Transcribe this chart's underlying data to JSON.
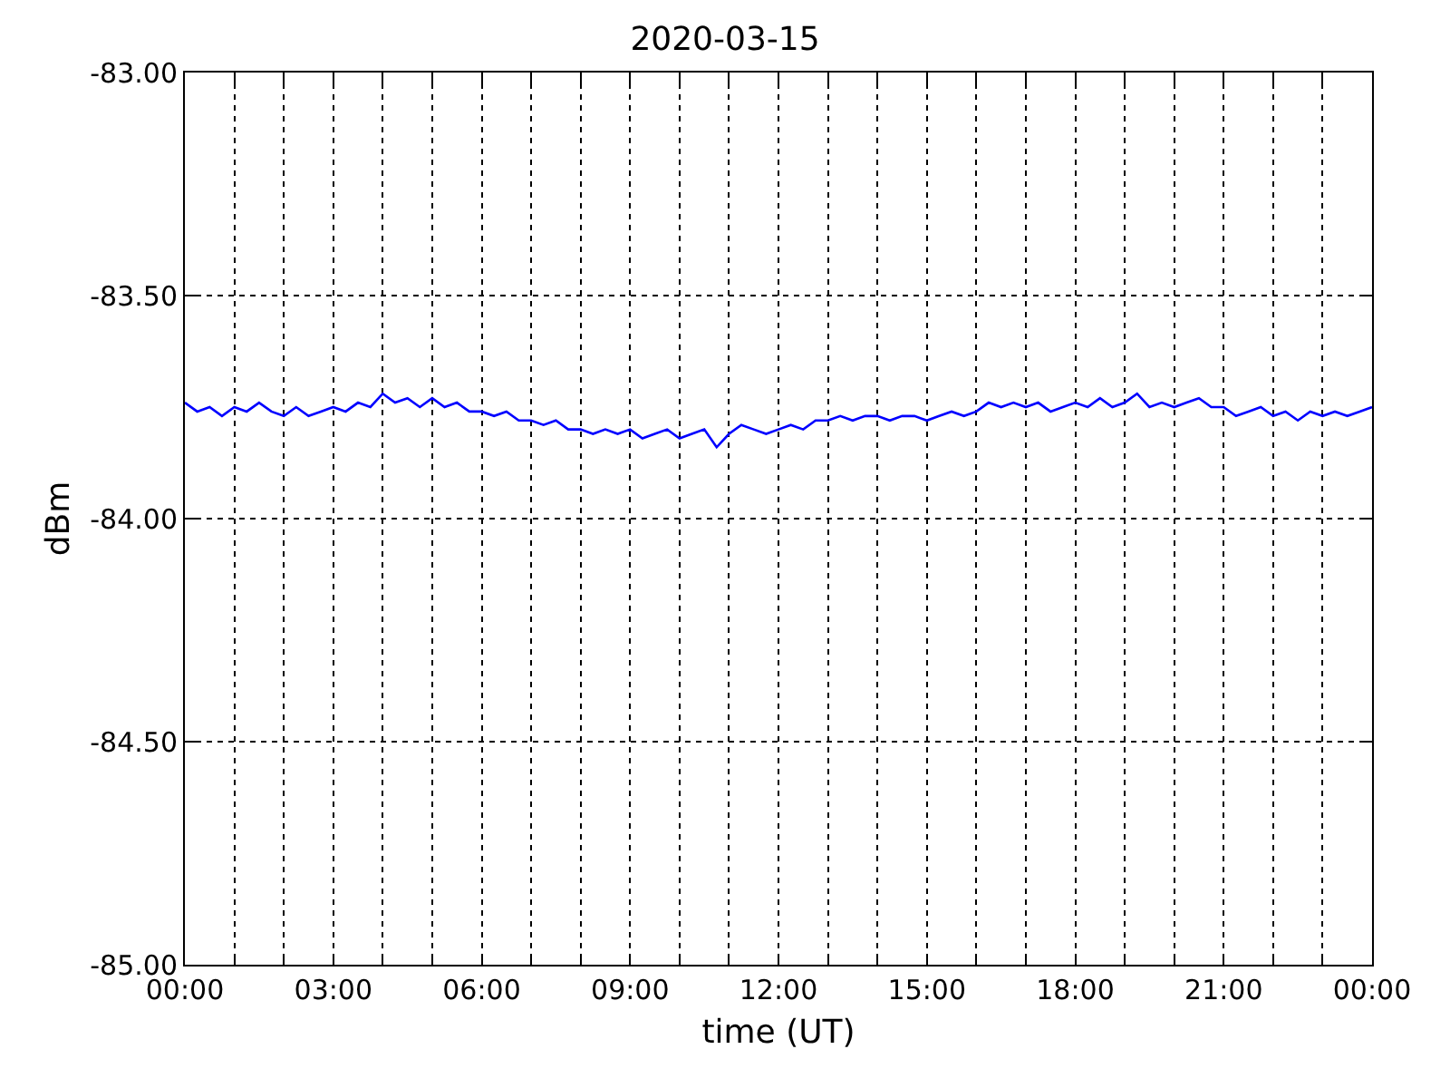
{
  "chart_data": {
    "type": "line",
    "title": "2020-03-15",
    "xlabel": "time (UT)",
    "ylabel": "dBm",
    "x": [
      0,
      0.25,
      0.5,
      0.75,
      1,
      1.25,
      1.5,
      1.75,
      2,
      2.25,
      2.5,
      2.75,
      3,
      3.25,
      3.5,
      3.75,
      4,
      4.25,
      4.5,
      4.75,
      5,
      5.25,
      5.5,
      5.75,
      6,
      6.25,
      6.5,
      6.75,
      7,
      7.25,
      7.5,
      7.75,
      8,
      8.25,
      8.5,
      8.75,
      9,
      9.25,
      9.5,
      9.75,
      10,
      10.25,
      10.5,
      10.75,
      11,
      11.25,
      11.5,
      11.75,
      12,
      12.25,
      12.5,
      12.75,
      13,
      13.25,
      13.5,
      13.75,
      14,
      14.25,
      14.5,
      14.75,
      15,
      15.25,
      15.5,
      15.75,
      16,
      16.25,
      16.5,
      16.75,
      17,
      17.25,
      17.5,
      17.75,
      18,
      18.25,
      18.5,
      18.75,
      19,
      19.25,
      19.5,
      19.75,
      20,
      20.25,
      20.5,
      20.75,
      21,
      21.25,
      21.5,
      21.75,
      22,
      22.25,
      22.5,
      22.75,
      23,
      23.25,
      23.5,
      23.75,
      24
    ],
    "series": [
      {
        "color": "#0000ff",
        "values": [
          -83.74,
          -83.76,
          -83.75,
          -83.77,
          -83.75,
          -83.76,
          -83.74,
          -83.76,
          -83.77,
          -83.75,
          -83.77,
          -83.76,
          -83.75,
          -83.76,
          -83.74,
          -83.75,
          -83.72,
          -83.74,
          -83.73,
          -83.75,
          -83.73,
          -83.75,
          -83.74,
          -83.76,
          -83.76,
          -83.77,
          -83.76,
          -83.78,
          -83.78,
          -83.79,
          -83.78,
          -83.8,
          -83.8,
          -83.81,
          -83.8,
          -83.81,
          -83.8,
          -83.82,
          -83.81,
          -83.8,
          -83.82,
          -83.81,
          -83.8,
          -83.84,
          -83.81,
          -83.79,
          -83.8,
          -83.81,
          -83.8,
          -83.79,
          -83.8,
          -83.78,
          -83.78,
          -83.77,
          -83.78,
          -83.77,
          -83.77,
          -83.78,
          -83.77,
          -83.77,
          -83.78,
          -83.77,
          -83.76,
          -83.77,
          -83.76,
          -83.74,
          -83.75,
          -83.74,
          -83.75,
          -83.74,
          -83.76,
          -83.75,
          -83.74,
          -83.75,
          -83.73,
          -83.75,
          -83.74,
          -83.72,
          -83.75,
          -83.74,
          -83.75,
          -83.74,
          -83.73,
          -83.75,
          -83.75,
          -83.77,
          -83.76,
          -83.75,
          -83.77,
          -83.76,
          -83.78,
          -83.76,
          -83.77,
          -83.76,
          -83.77,
          -83.76,
          -83.75
        ]
      }
    ],
    "xlim": [
      0,
      24
    ],
    "xticks": [
      {
        "value": 0,
        "label": "00:00"
      },
      {
        "value": 1,
        "label": null
      },
      {
        "value": 2,
        "label": null
      },
      {
        "value": 3,
        "label": "03:00"
      },
      {
        "value": 4,
        "label": null
      },
      {
        "value": 5,
        "label": null
      },
      {
        "value": 6,
        "label": "06:00"
      },
      {
        "value": 7,
        "label": null
      },
      {
        "value": 8,
        "label": null
      },
      {
        "value": 9,
        "label": "09:00"
      },
      {
        "value": 10,
        "label": null
      },
      {
        "value": 11,
        "label": null
      },
      {
        "value": 12,
        "label": "12:00"
      },
      {
        "value": 13,
        "label": null
      },
      {
        "value": 14,
        "label": null
      },
      {
        "value": 15,
        "label": "15:00"
      },
      {
        "value": 16,
        "label": null
      },
      {
        "value": 17,
        "label": null
      },
      {
        "value": 18,
        "label": "18:00"
      },
      {
        "value": 19,
        "label": null
      },
      {
        "value": 20,
        "label": null
      },
      {
        "value": 21,
        "label": "21:00"
      },
      {
        "value": 22,
        "label": null
      },
      {
        "value": 23,
        "label": null
      },
      {
        "value": 24,
        "label": "00:00"
      }
    ],
    "ylim": [
      -85,
      -83
    ],
    "yticks": [
      {
        "value": -85,
        "label": "-85.00"
      },
      {
        "value": -84.5,
        "label": "-84.50"
      },
      {
        "value": -84,
        "label": "-84.00"
      },
      {
        "value": -83.5,
        "label": "-83.50"
      },
      {
        "value": -83,
        "label": "-83.00"
      }
    ],
    "grid": true,
    "marker": "none",
    "line_style": "solid"
  }
}
